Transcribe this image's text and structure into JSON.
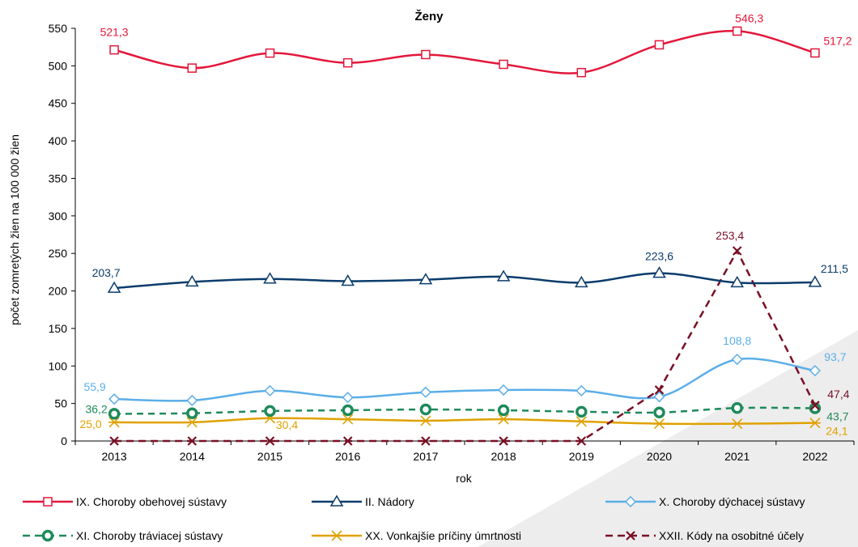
{
  "chart_data": {
    "type": "line",
    "title": "Ženy",
    "xlabel": "rok",
    "ylabel": "počet zomretých žien na 100 000 žien",
    "ylim": [
      0,
      550
    ],
    "yticks": [
      0,
      50,
      100,
      150,
      200,
      250,
      300,
      350,
      400,
      450,
      500,
      550
    ],
    "grid": false,
    "legend_position": "bottom",
    "categories": [
      "2013",
      "2014",
      "2015",
      "2016",
      "2017",
      "2018",
      "2019",
      "2020",
      "2021",
      "2022"
    ],
    "series": [
      {
        "name": "IX. Choroby obehovej sústavy",
        "color": "#e3173b",
        "dash": "solid",
        "marker": "square",
        "values": [
          521.3,
          497,
          517,
          504,
          515,
          502,
          491,
          528,
          546.3,
          517.2
        ],
        "labels": [
          {
            "i": 0,
            "text": "521,3"
          },
          {
            "i": 8,
            "text": "546,3"
          },
          {
            "i": 9,
            "text": "517,2"
          }
        ]
      },
      {
        "name": "II. Nádory",
        "color": "#0b3c6b",
        "dash": "solid",
        "marker": "triangle",
        "values": [
          203.7,
          212,
          216,
          213,
          215,
          219,
          211,
          223.6,
          211,
          211.5
        ],
        "labels": [
          {
            "i": 0,
            "text": "203,7"
          },
          {
            "i": 7,
            "text": "223,6"
          },
          {
            "i": 9,
            "text": "211,5"
          }
        ]
      },
      {
        "name": "X. Choroby dýchacej sústavy",
        "color": "#5aaee8",
        "dash": "solid",
        "marker": "diamond",
        "values": [
          55.9,
          54,
          67,
          58,
          65,
          68,
          67,
          59,
          108.8,
          93.7
        ],
        "labels": [
          {
            "i": 0,
            "text": "55,9"
          },
          {
            "i": 8,
            "text": "108,8"
          },
          {
            "i": 9,
            "text": "93,7"
          }
        ]
      },
      {
        "name": "XI. Choroby tráviacej sústavy",
        "color": "#1e8a5a",
        "dash": "dashed",
        "marker": "circle",
        "values": [
          36.2,
          37,
          40,
          41,
          42,
          41,
          39,
          38,
          44,
          43.7
        ],
        "labels": [
          {
            "i": 0,
            "text": "36,2"
          },
          {
            "i": 9,
            "text": "43,7"
          }
        ]
      },
      {
        "name": "XX. Vonkajšie príčiny úmrtnosti",
        "color": "#e0a100",
        "dash": "solid",
        "marker": "star",
        "values": [
          25.0,
          25,
          30.4,
          29,
          27,
          29,
          26,
          23,
          23,
          24.1
        ],
        "labels": [
          {
            "i": 0,
            "text": "25,0"
          },
          {
            "i": 2,
            "text": "30,4"
          },
          {
            "i": 9,
            "text": "24,1"
          }
        ]
      },
      {
        "name": "XXII. Kódy na osobitné účely",
        "color": "#7a0f24",
        "dash": "dashed",
        "marker": "x",
        "values": [
          0,
          0,
          0,
          0,
          0,
          0,
          0,
          68,
          253.4,
          47.4
        ],
        "labels": [
          {
            "i": 8,
            "text": "253,4"
          },
          {
            "i": 9,
            "text": "47,4"
          }
        ]
      }
    ]
  }
}
